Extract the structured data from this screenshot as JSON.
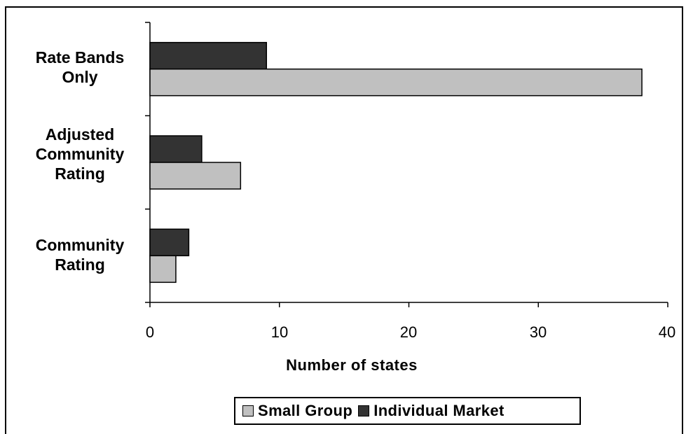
{
  "chart_data": {
    "type": "bar",
    "orientation": "horizontal",
    "categories": [
      "Rate Bands\nOnly",
      "Adjusted\nCommunity\nRating",
      "Community\nRating"
    ],
    "series": [
      {
        "name": "Individual Market",
        "values": [
          9,
          4,
          3
        ],
        "color": "#333333"
      },
      {
        "name": "Small Group",
        "values": [
          38,
          7,
          2
        ],
        "color": "#c0c0c0"
      }
    ],
    "xlabel": "Number of states",
    "xlim": [
      0,
      40
    ],
    "xticks": [
      "0",
      "10",
      "20",
      "30",
      "40"
    ],
    "grid": false,
    "legend": {
      "position": "bottom",
      "entries": [
        {
          "label": "Small Group",
          "color": "#c0c0c0"
        },
        {
          "label": "Individual Market",
          "color": "#333333"
        }
      ]
    }
  }
}
